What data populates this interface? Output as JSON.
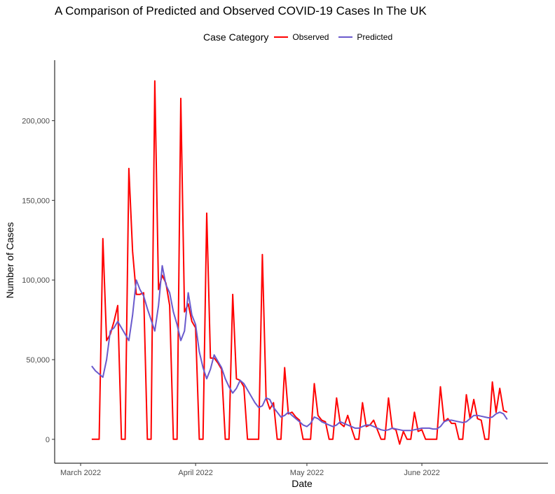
{
  "chart_data": {
    "type": "line",
    "title": "A Comparison of Predicted and Observed COVID-19 Cases In The UK",
    "xlabel": "Date",
    "ylabel": "Number of Cases",
    "legend_title": "Case Category",
    "legend_position": "top",
    "grid": false,
    "xlim": [
      "2022-02-22",
      "2022-07-05"
    ],
    "ylim": [
      -15000,
      238000
    ],
    "x_ticks": [
      {
        "date": "2022-03-01",
        "label": "March 2022"
      },
      {
        "date": "2022-04-01",
        "label": "April 2022"
      },
      {
        "date": "2022-05-01",
        "label": "May 2022"
      },
      {
        "date": "2022-06-01",
        "label": "June 2022"
      }
    ],
    "y_ticks": [
      {
        "value": 0,
        "label": "0"
      },
      {
        "value": 50000,
        "label": "50,000"
      },
      {
        "value": 100000,
        "label": "100,000"
      },
      {
        "value": 150000,
        "label": "150,000"
      },
      {
        "value": 200000,
        "label": "200,000"
      }
    ],
    "series": [
      {
        "name": "Observed",
        "color": "#ff0000",
        "points": [
          [
            "2022-03-04",
            0
          ],
          [
            "2022-03-05",
            0
          ],
          [
            "2022-03-06",
            0
          ],
          [
            "2022-03-07",
            126000
          ],
          [
            "2022-03-08",
            62000
          ],
          [
            "2022-03-09",
            66000
          ],
          [
            "2022-03-10",
            74000
          ],
          [
            "2022-03-11",
            84000
          ],
          [
            "2022-03-12",
            0
          ],
          [
            "2022-03-13",
            0
          ],
          [
            "2022-03-14",
            170000
          ],
          [
            "2022-03-15",
            118000
          ],
          [
            "2022-03-16",
            91000
          ],
          [
            "2022-03-17",
            91000
          ],
          [
            "2022-03-18",
            92000
          ],
          [
            "2022-03-19",
            0
          ],
          [
            "2022-03-20",
            0
          ],
          [
            "2022-03-21",
            225000
          ],
          [
            "2022-03-22",
            94000
          ],
          [
            "2022-03-23",
            103000
          ],
          [
            "2022-03-24",
            98000
          ],
          [
            "2022-03-25",
            84000
          ],
          [
            "2022-03-26",
            0
          ],
          [
            "2022-03-27",
            0
          ],
          [
            "2022-03-28",
            214000
          ],
          [
            "2022-03-29",
            80000
          ],
          [
            "2022-03-30",
            85000
          ],
          [
            "2022-03-31",
            74000
          ],
          [
            "2022-04-01",
            70000
          ],
          [
            "2022-04-02",
            0
          ],
          [
            "2022-04-03",
            0
          ],
          [
            "2022-04-04",
            142000
          ],
          [
            "2022-04-05",
            51000
          ],
          [
            "2022-04-06",
            51000
          ],
          [
            "2022-04-07",
            48000
          ],
          [
            "2022-04-08",
            44000
          ],
          [
            "2022-04-09",
            0
          ],
          [
            "2022-04-10",
            0
          ],
          [
            "2022-04-11",
            91000
          ],
          [
            "2022-04-12",
            38000
          ],
          [
            "2022-04-13",
            37000
          ],
          [
            "2022-04-14",
            33000
          ],
          [
            "2022-04-15",
            0
          ],
          [
            "2022-04-16",
            0
          ],
          [
            "2022-04-17",
            0
          ],
          [
            "2022-04-18",
            0
          ],
          [
            "2022-04-19",
            116000
          ],
          [
            "2022-04-20",
            26000
          ],
          [
            "2022-04-21",
            19000
          ],
          [
            "2022-04-22",
            23000
          ],
          [
            "2022-04-23",
            0
          ],
          [
            "2022-04-24",
            0
          ],
          [
            "2022-04-25",
            45000
          ],
          [
            "2022-04-26",
            16000
          ],
          [
            "2022-04-27",
            17000
          ],
          [
            "2022-04-28",
            14000
          ],
          [
            "2022-04-29",
            12000
          ],
          [
            "2022-04-30",
            0
          ],
          [
            "2022-05-01",
            0
          ],
          [
            "2022-05-02",
            0
          ],
          [
            "2022-05-03",
            35000
          ],
          [
            "2022-05-04",
            15000
          ],
          [
            "2022-05-05",
            12000
          ],
          [
            "2022-05-06",
            11000
          ],
          [
            "2022-05-07",
            0
          ],
          [
            "2022-05-08",
            0
          ],
          [
            "2022-05-09",
            26000
          ],
          [
            "2022-05-10",
            10000
          ],
          [
            "2022-05-11",
            8000
          ],
          [
            "2022-05-12",
            15000
          ],
          [
            "2022-05-13",
            7000
          ],
          [
            "2022-05-14",
            0
          ],
          [
            "2022-05-15",
            0
          ],
          [
            "2022-05-16",
            23000
          ],
          [
            "2022-05-17",
            8000
          ],
          [
            "2022-05-18",
            9000
          ],
          [
            "2022-05-19",
            12000
          ],
          [
            "2022-05-20",
            6000
          ],
          [
            "2022-05-21",
            0
          ],
          [
            "2022-05-22",
            0
          ],
          [
            "2022-05-23",
            26000
          ],
          [
            "2022-05-24",
            7000
          ],
          [
            "2022-05-25",
            6000
          ],
          [
            "2022-05-26",
            -3000
          ],
          [
            "2022-05-27",
            5000
          ],
          [
            "2022-05-28",
            0
          ],
          [
            "2022-05-29",
            0
          ],
          [
            "2022-05-30",
            17000
          ],
          [
            "2022-05-31",
            5000
          ],
          [
            "2022-06-01",
            6000
          ],
          [
            "2022-06-02",
            0
          ],
          [
            "2022-06-03",
            0
          ],
          [
            "2022-06-04",
            0
          ],
          [
            "2022-06-05",
            0
          ],
          [
            "2022-06-06",
            33000
          ],
          [
            "2022-06-07",
            11000
          ],
          [
            "2022-06-08",
            13000
          ],
          [
            "2022-06-09",
            10000
          ],
          [
            "2022-06-10",
            10000
          ],
          [
            "2022-06-11",
            0
          ],
          [
            "2022-06-12",
            0
          ],
          [
            "2022-06-13",
            28000
          ],
          [
            "2022-06-14",
            13000
          ],
          [
            "2022-06-15",
            25000
          ],
          [
            "2022-06-16",
            13000
          ],
          [
            "2022-06-17",
            12000
          ],
          [
            "2022-06-18",
            0
          ],
          [
            "2022-06-19",
            0
          ],
          [
            "2022-06-20",
            36000
          ],
          [
            "2022-06-21",
            17000
          ],
          [
            "2022-06-22",
            32000
          ],
          [
            "2022-06-23",
            18000
          ],
          [
            "2022-06-24",
            17000
          ]
        ]
      },
      {
        "name": "Predicted",
        "color": "#6a5acd",
        "points": [
          [
            "2022-03-04",
            46000
          ],
          [
            "2022-03-05",
            43000
          ],
          [
            "2022-03-06",
            41000
          ],
          [
            "2022-03-07",
            39000
          ],
          [
            "2022-03-08",
            50000
          ],
          [
            "2022-03-09",
            68000
          ],
          [
            "2022-03-10",
            70000
          ],
          [
            "2022-03-11",
            74000
          ],
          [
            "2022-03-12",
            70000
          ],
          [
            "2022-03-13",
            66000
          ],
          [
            "2022-03-14",
            62000
          ],
          [
            "2022-03-15",
            78000
          ],
          [
            "2022-03-16",
            100000
          ],
          [
            "2022-03-17",
            94000
          ],
          [
            "2022-03-18",
            90000
          ],
          [
            "2022-03-19",
            82000
          ],
          [
            "2022-03-20",
            75000
          ],
          [
            "2022-03-21",
            68000
          ],
          [
            "2022-03-22",
            84000
          ],
          [
            "2022-03-23",
            109000
          ],
          [
            "2022-03-24",
            97000
          ],
          [
            "2022-03-25",
            92000
          ],
          [
            "2022-03-26",
            80000
          ],
          [
            "2022-03-27",
            72000
          ],
          [
            "2022-03-28",
            62000
          ],
          [
            "2022-03-29",
            68000
          ],
          [
            "2022-03-30",
            92000
          ],
          [
            "2022-03-31",
            78000
          ],
          [
            "2022-04-01",
            72000
          ],
          [
            "2022-04-02",
            55000
          ],
          [
            "2022-04-03",
            45000
          ],
          [
            "2022-04-04",
            38000
          ],
          [
            "2022-04-05",
            44000
          ],
          [
            "2022-04-06",
            53000
          ],
          [
            "2022-04-07",
            49000
          ],
          [
            "2022-04-08",
            45000
          ],
          [
            "2022-04-09",
            38000
          ],
          [
            "2022-04-10",
            33000
          ],
          [
            "2022-04-11",
            29000
          ],
          [
            "2022-04-12",
            32000
          ],
          [
            "2022-04-13",
            37000
          ],
          [
            "2022-04-14",
            35000
          ],
          [
            "2022-04-15",
            31000
          ],
          [
            "2022-04-16",
            27000
          ],
          [
            "2022-04-17",
            23000
          ],
          [
            "2022-04-18",
            20000
          ],
          [
            "2022-04-19",
            21000
          ],
          [
            "2022-04-20",
            26000
          ],
          [
            "2022-04-21",
            25000
          ],
          [
            "2022-04-22",
            20000
          ],
          [
            "2022-04-23",
            17000
          ],
          [
            "2022-04-24",
            14000
          ],
          [
            "2022-04-25",
            15000
          ],
          [
            "2022-04-26",
            17000
          ],
          [
            "2022-04-27",
            15000
          ],
          [
            "2022-04-28",
            13000
          ],
          [
            "2022-04-29",
            11000
          ],
          [
            "2022-04-30",
            9000
          ],
          [
            "2022-05-01",
            8000
          ],
          [
            "2022-05-02",
            10000
          ],
          [
            "2022-05-03",
            14000
          ],
          [
            "2022-05-04",
            13000
          ],
          [
            "2022-05-05",
            11000
          ],
          [
            "2022-05-06",
            10000
          ],
          [
            "2022-05-07",
            9000
          ],
          [
            "2022-05-08",
            8000
          ],
          [
            "2022-05-09",
            9000
          ],
          [
            "2022-05-10",
            11000
          ],
          [
            "2022-05-11",
            10000
          ],
          [
            "2022-05-12",
            9000
          ],
          [
            "2022-05-13",
            8000
          ],
          [
            "2022-05-14",
            7000
          ],
          [
            "2022-05-15",
            7000
          ],
          [
            "2022-05-16",
            8000
          ],
          [
            "2022-05-17",
            9000
          ],
          [
            "2022-05-18",
            9000
          ],
          [
            "2022-05-19",
            8000
          ],
          [
            "2022-05-20",
            7000
          ],
          [
            "2022-05-21",
            6000
          ],
          [
            "2022-05-22",
            5500
          ],
          [
            "2022-05-23",
            6000
          ],
          [
            "2022-05-24",
            7000
          ],
          [
            "2022-05-25",
            6500
          ],
          [
            "2022-05-26",
            6000
          ],
          [
            "2022-05-27",
            5500
          ],
          [
            "2022-05-28",
            5500
          ],
          [
            "2022-05-29",
            5500
          ],
          [
            "2022-05-30",
            6000
          ],
          [
            "2022-05-31",
            6500
          ],
          [
            "2022-06-01",
            7000
          ],
          [
            "2022-06-02",
            7000
          ],
          [
            "2022-06-03",
            7000
          ],
          [
            "2022-06-04",
            6500
          ],
          [
            "2022-06-05",
            6500
          ],
          [
            "2022-06-06",
            8000
          ],
          [
            "2022-06-07",
            11000
          ],
          [
            "2022-06-08",
            12000
          ],
          [
            "2022-06-09",
            12000
          ],
          [
            "2022-06-10",
            11500
          ],
          [
            "2022-06-11",
            11000
          ],
          [
            "2022-06-12",
            10500
          ],
          [
            "2022-06-13",
            11000
          ],
          [
            "2022-06-14",
            13000
          ],
          [
            "2022-06-15",
            15000
          ],
          [
            "2022-06-16",
            15000
          ],
          [
            "2022-06-17",
            14500
          ],
          [
            "2022-06-18",
            14000
          ],
          [
            "2022-06-19",
            13500
          ],
          [
            "2022-06-20",
            14000
          ],
          [
            "2022-06-21",
            16000
          ],
          [
            "2022-06-22",
            17000
          ],
          [
            "2022-06-23",
            16000
          ],
          [
            "2022-06-24",
            12500
          ]
        ]
      }
    ]
  }
}
